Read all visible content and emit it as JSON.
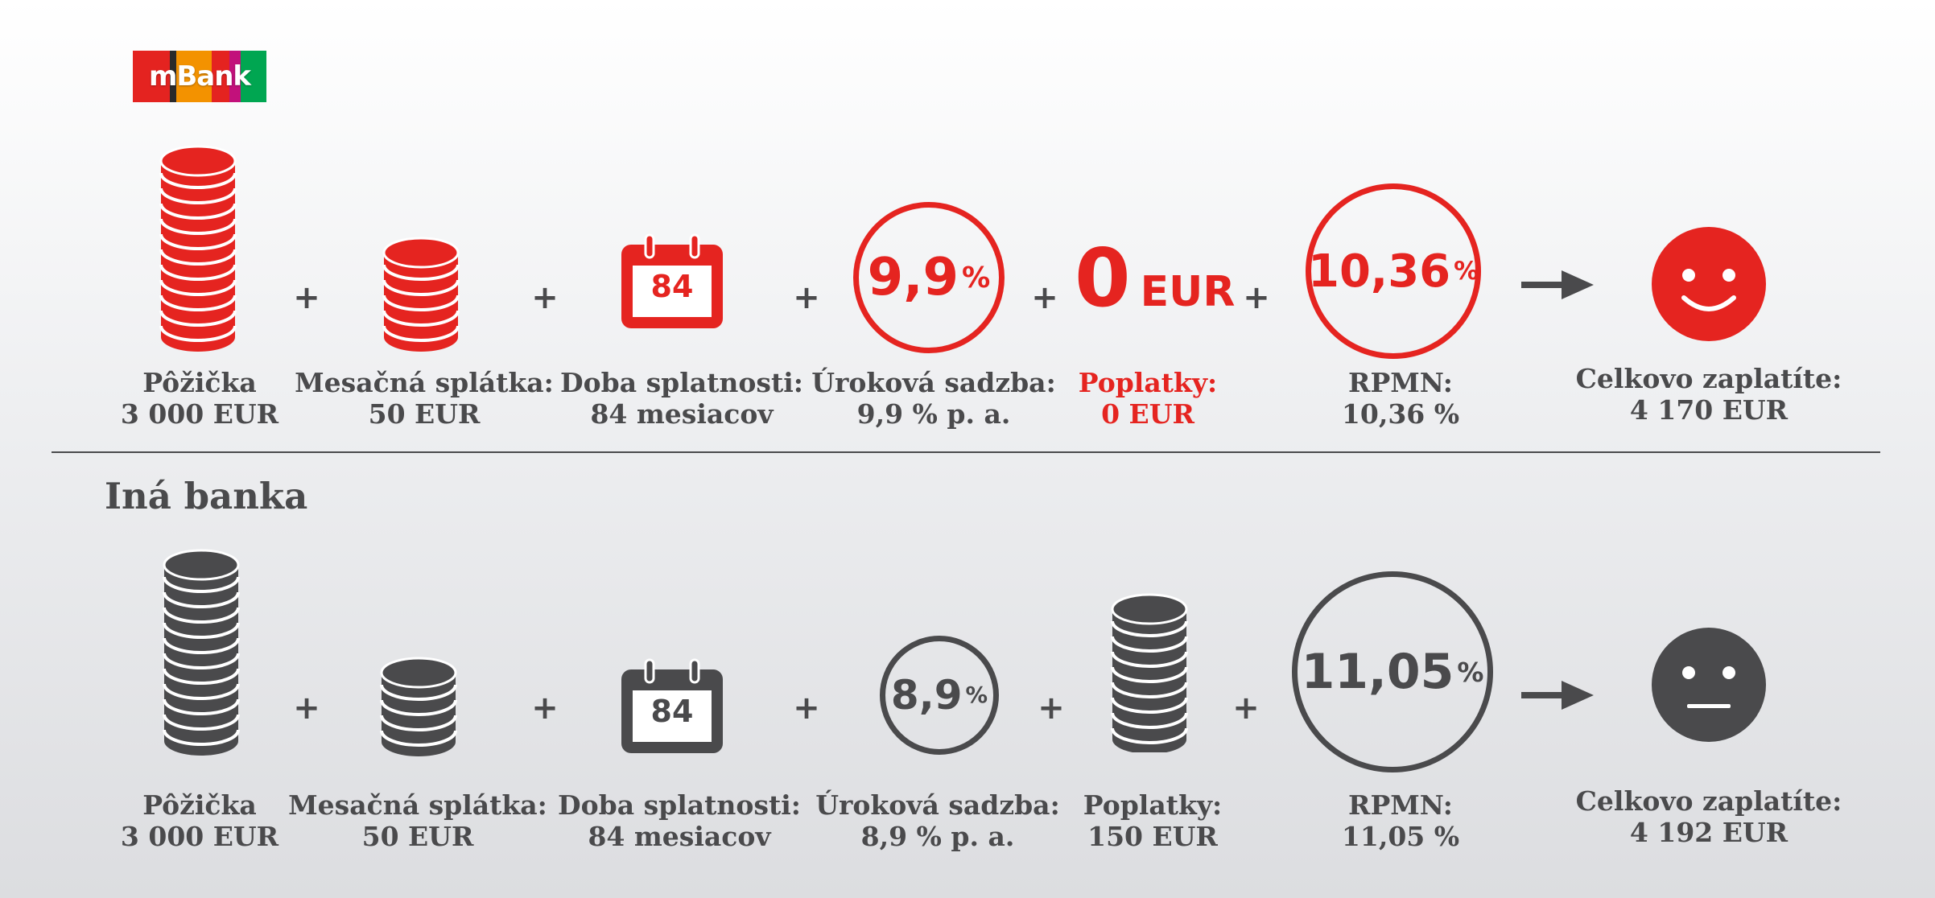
{
  "brand": {
    "logo_text": "mBank",
    "stripe_colors": [
      "#e42320",
      "#2a2a2a",
      "#f39200",
      "#e42320",
      "#c2117b",
      "#00a651"
    ]
  },
  "colors": {
    "mbank": "#e52420",
    "other": "#4a4a4c"
  },
  "mbank_row": {
    "loan": {
      "label": "Pôžička",
      "value": "3 000 EUR"
    },
    "monthly": {
      "label": "Mesačná splátka:",
      "value": "50 EUR"
    },
    "term": {
      "icon_value": "84",
      "label": "Doba splatnosti:",
      "value": "84 mesiacov"
    },
    "rate": {
      "icon_value": "9,9",
      "icon_unit": "%",
      "label": "Úroková sadzba:",
      "value": "9,9 % p. a."
    },
    "fees": {
      "icon_value": "0",
      "icon_unit": "EUR",
      "label": "Poplatky:",
      "value": "0 EUR"
    },
    "rpmn": {
      "icon_value": "10,36",
      "icon_unit": "%",
      "label": "RPMN:",
      "value": "10,36 %"
    },
    "total": {
      "label": "Celkovo zaplatíte:",
      "value": "4 170 EUR",
      "face": "smile"
    }
  },
  "other_row": {
    "title": "Iná banka",
    "loan": {
      "label": "Pôžička",
      "value": "3 000 EUR"
    },
    "monthly": {
      "label": "Mesačná splátka:",
      "value": "50 EUR"
    },
    "term": {
      "icon_value": "84",
      "label": "Doba splatnosti:",
      "value": "84 mesiacov"
    },
    "rate": {
      "icon_value": "8,9",
      "icon_unit": "%",
      "label": "Úroková sadzba:",
      "value": "8,9 % p. a."
    },
    "fees": {
      "label": "Poplatky:",
      "value": "150 EUR"
    },
    "rpmn": {
      "icon_value": "11,05",
      "icon_unit": "%",
      "label": "RPMN:",
      "value": "11,05 %"
    },
    "total": {
      "label": "Celkovo zaplatíte:",
      "value": "4 192 EUR",
      "face": "neutral"
    }
  },
  "operators": {
    "plus": "+"
  }
}
